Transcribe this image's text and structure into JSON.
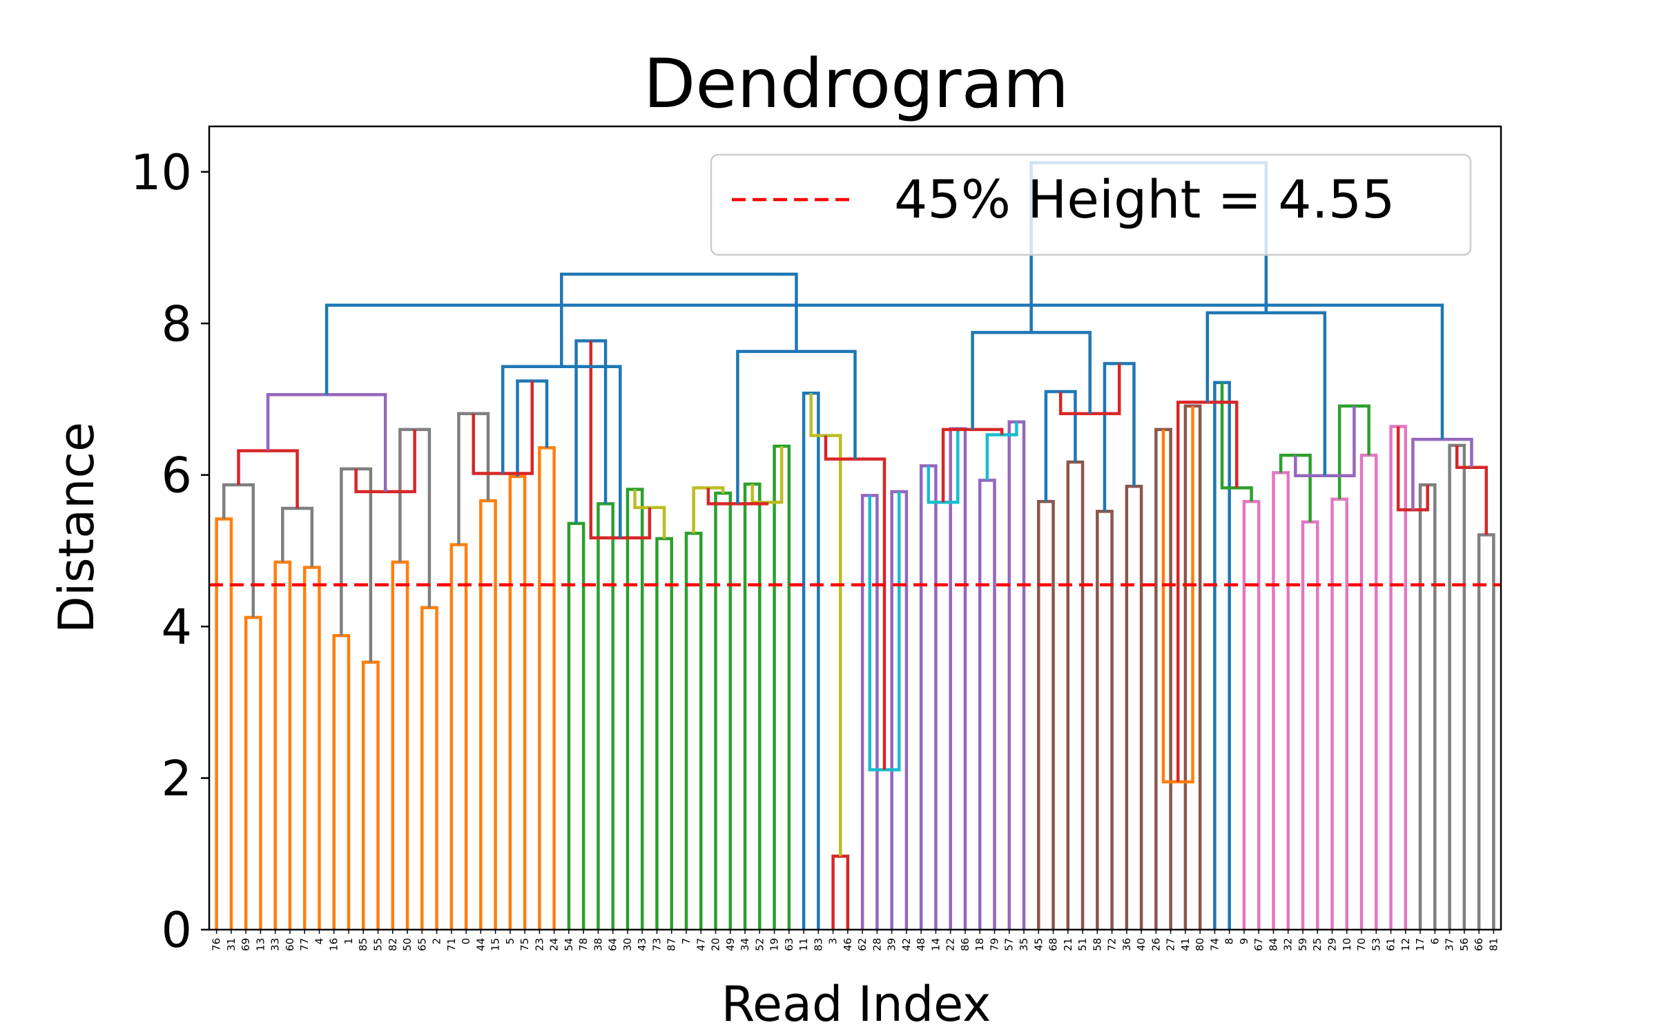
{
  "chart_data": {
    "type": "dendrogram",
    "title": "Dendrogram",
    "xlabel": "Read Index",
    "ylabel": "Distance",
    "ylim": [
      0,
      10.6
    ],
    "yticks": [
      0,
      2,
      4,
      6,
      8,
      10
    ],
    "leaves": [
      "76",
      "31",
      "69",
      "13",
      "33",
      "60",
      "77",
      "4",
      "16",
      "1",
      "85",
      "55",
      "82",
      "50",
      "65",
      "2",
      "71",
      "0",
      "44",
      "15",
      "5",
      "75",
      "23",
      "24",
      "54",
      "78",
      "38",
      "64",
      "30",
      "43",
      "73",
      "87",
      "7",
      "47",
      "20",
      "49",
      "34",
      "52",
      "19",
      "63",
      "11",
      "83",
      "3",
      "46",
      "62",
      "28",
      "39",
      "42",
      "48",
      "14",
      "22",
      "86",
      "18",
      "79",
      "57",
      "35",
      "45",
      "68",
      "21",
      "51",
      "58",
      "72",
      "36",
      "40",
      "26",
      "27",
      "41",
      "80",
      "74",
      "8",
      "9",
      "67",
      "84",
      "32",
      "59",
      "25",
      "29",
      "10",
      "70",
      "53",
      "61",
      "12",
      "17",
      "6",
      "37",
      "56",
      "66",
      "81"
    ],
    "links": [
      {
        "a": "L0",
        "b": "L1",
        "h": 5.42,
        "color": "#ff7f0e"
      },
      {
        "a": "L2",
        "b": "L3",
        "h": 4.12,
        "color": "#ff7f0e"
      },
      {
        "a": "L4",
        "b": "L5",
        "h": 4.85,
        "color": "#ff7f0e"
      },
      {
        "a": "L6",
        "b": "L7",
        "h": 4.78,
        "color": "#ff7f0e"
      },
      {
        "a": "L8",
        "b": "L9",
        "h": 3.88,
        "color": "#ff7f0e"
      },
      {
        "a": "L10",
        "b": "L11",
        "h": 3.53,
        "color": "#ff7f0e"
      },
      {
        "a": "L12",
        "b": "L13",
        "h": 4.85,
        "color": "#ff7f0e"
      },
      {
        "a": "L14",
        "b": "L15",
        "h": 4.25,
        "color": "#ff7f0e"
      },
      {
        "a": "L16",
        "b": "L17",
        "h": 5.08,
        "color": "#ff7f0e"
      },
      {
        "a": "L18",
        "b": "L19",
        "h": 5.66,
        "color": "#ff7f0e"
      },
      {
        "a": "L20",
        "b": "L21",
        "h": 5.98,
        "color": "#ff7f0e"
      },
      {
        "a": "L22",
        "b": "L23",
        "h": 6.36,
        "color": "#ff7f0e"
      },
      {
        "a": "L24",
        "b": "L25",
        "h": 5.36,
        "color": "#2ca02c"
      },
      {
        "a": "L26",
        "b": "L27",
        "h": 5.62,
        "color": "#2ca02c"
      },
      {
        "a": "L28",
        "b": "L29",
        "h": 5.81,
        "color": "#2ca02c"
      },
      {
        "a": "L30",
        "b": "L31",
        "h": 5.16,
        "color": "#2ca02c"
      },
      {
        "a": "L32",
        "b": "L33",
        "h": 5.23,
        "color": "#2ca02c"
      },
      {
        "a": "L34",
        "b": "L35",
        "h": 5.76,
        "color": "#2ca02c"
      },
      {
        "a": "L36",
        "b": "L37",
        "h": 5.88,
        "color": "#2ca02c"
      },
      {
        "a": "L38",
        "b": "L39",
        "h": 6.38,
        "color": "#2ca02c"
      },
      {
        "a": "L40",
        "b": "L41",
        "h": 7.08,
        "color": "#1f77b4"
      },
      {
        "a": "L42",
        "b": "L43",
        "h": 0.97,
        "color": "#d62728"
      },
      {
        "a": "L44",
        "b": "L45",
        "h": 5.73,
        "color": "#9467bd"
      },
      {
        "a": "L46",
        "b": "L47",
        "h": 5.78,
        "color": "#9467bd"
      },
      {
        "a": "L48",
        "b": "L49",
        "h": 6.12,
        "color": "#9467bd"
      },
      {
        "a": "L50",
        "b": "L51",
        "h": 6.61,
        "color": "#9467bd"
      },
      {
        "a": "L52",
        "b": "L53",
        "h": 5.93,
        "color": "#9467bd"
      },
      {
        "a": "L54",
        "b": "L55",
        "h": 6.7,
        "color": "#9467bd"
      },
      {
        "a": "L56",
        "b": "L57",
        "h": 5.65,
        "color": "#8c564b"
      },
      {
        "a": "L58",
        "b": "L59",
        "h": 6.17,
        "color": "#8c564b"
      },
      {
        "a": "L60",
        "b": "L61",
        "h": 5.52,
        "color": "#8c564b"
      },
      {
        "a": "L62",
        "b": "L63",
        "h": 5.85,
        "color": "#8c564b"
      },
      {
        "a": "L64",
        "b": "L65",
        "h": 6.6,
        "color": "#8c564b"
      },
      {
        "a": "L66",
        "b": "L67",
        "h": 6.91,
        "color": "#8c564b"
      },
      {
        "a": "L68",
        "b": "L69",
        "h": 7.22,
        "color": "#1f77b4"
      },
      {
        "a": "L70",
        "b": "L71",
        "h": 5.65,
        "color": "#e377c2"
      },
      {
        "a": "L72",
        "b": "L73",
        "h": 6.03,
        "color": "#e377c2"
      },
      {
        "a": "L74",
        "b": "L75",
        "h": 5.38,
        "color": "#e377c2"
      },
      {
        "a": "L76",
        "b": "L77",
        "h": 5.68,
        "color": "#e377c2"
      },
      {
        "a": "L78",
        "b": "L79",
        "h": 6.26,
        "color": "#e377c2"
      },
      {
        "a": "L80",
        "b": "L81",
        "h": 6.64,
        "color": "#e377c2"
      },
      {
        "a": "L82",
        "b": "L83",
        "h": 5.87,
        "color": "#7f7f7f"
      },
      {
        "a": "L84",
        "b": "L85",
        "h": 6.39,
        "color": "#7f7f7f"
      },
      {
        "a": "L86",
        "b": "L87",
        "h": 5.21,
        "color": "#7f7f7f"
      },
      {
        "a": "L88",
        "b": "L89",
        "h": 5.87,
        "color": "#7f7f7f"
      },
      {
        "a": "L90",
        "b": "L91",
        "h": 5.56,
        "color": "#7f7f7f"
      },
      {
        "a": "L92",
        "b": "L93",
        "h": 6.08,
        "color": "#7f7f7f"
      },
      {
        "a": "L94",
        "b": "L95",
        "h": 6.6,
        "color": "#7f7f7f"
      },
      {
        "a": "L96",
        "b": "L97",
        "h": 6.81,
        "color": "#7f7f7f"
      },
      {
        "a": "L98",
        "b": "L99",
        "h": 7.24,
        "color": "#1f77b4"
      },
      {
        "a": "L100",
        "b": "L101",
        "h": 7.77,
        "color": "#1f77b4"
      },
      {
        "a": "L102",
        "b": "L103",
        "h": 5.57,
        "color": "#bcbd22"
      },
      {
        "a": "L104",
        "b": "L105",
        "h": 5.83,
        "color": "#bcbd22"
      },
      {
        "a": "L106",
        "b": "L107",
        "h": 5.64,
        "color": "#bcbd22"
      },
      {
        "a": "L108",
        "b": "L109",
        "h": 6.52,
        "color": "#bcbd22"
      },
      {
        "a": "L110",
        "b": "L111",
        "h": 2.11,
        "color": "#17becf"
      },
      {
        "a": "L112",
        "b": "L113",
        "h": 5.64,
        "color": "#17becf"
      },
      {
        "a": "L114",
        "b": "L115",
        "h": 6.53,
        "color": "#17becf"
      },
      {
        "a": "L116",
        "b": "L117",
        "h": 7.1,
        "color": "#1f77b4"
      },
      {
        "a": "L118",
        "b": "L119",
        "h": 7.47,
        "color": "#1f77b4"
      },
      {
        "a": "L120",
        "b": "L121",
        "h": 1.95,
        "color": "#ff7f0e"
      },
      {
        "a": "L122",
        "b": "L123",
        "h": 5.83,
        "color": "#2ca02c"
      },
      {
        "a": "L124",
        "b": "L125",
        "h": 6.26,
        "color": "#2ca02c"
      },
      {
        "a": "L126",
        "b": "L127",
        "h": 6.91,
        "color": "#2ca02c"
      },
      {
        "a": "L128",
        "b": "L129",
        "h": 5.54,
        "color": "#d62728"
      },
      {
        "a": "L130",
        "b": "L131",
        "h": 6.1,
        "color": "#d62728"
      },
      {
        "a": "L132",
        "b": "L133",
        "h": 6.32,
        "color": "#d62728"
      },
      {
        "a": "L134",
        "b": "L135",
        "h": 5.78,
        "color": "#d62728"
      },
      {
        "a": "L136",
        "b": "L137",
        "h": 6.02,
        "color": "#d62728"
      },
      {
        "a": "L138",
        "b": "L139",
        "h": 5.17,
        "color": "#d62728"
      },
      {
        "a": "L140",
        "b": "L141",
        "h": 5.62,
        "color": "#d62728"
      },
      {
        "a": "L142",
        "b": "L143",
        "h": 6.21,
        "color": "#d62728"
      },
      {
        "a": "L144",
        "b": "L145",
        "h": 6.6,
        "color": "#d62728"
      },
      {
        "a": "L146",
        "b": "L147",
        "h": 6.81,
        "color": "#d62728"
      },
      {
        "a": "L148",
        "b": "L149",
        "h": 6.96,
        "color": "#d62728"
      },
      {
        "a": "L150",
        "b": "L151",
        "h": 5.99,
        "color": "#9467bd"
      },
      {
        "a": "L152",
        "b": "L153",
        "h": 6.47,
        "color": "#9467bd"
      },
      {
        "a": "L154",
        "b": "L155",
        "h": 7.06,
        "color": "#9467bd"
      },
      {
        "a": "L156",
        "b": "L157",
        "h": 7.43,
        "color": "#1f77b4"
      },
      {
        "a": "L158",
        "b": "L159",
        "h": 7.63,
        "color": "#1f77b4"
      },
      {
        "a": "L160",
        "b": "L161",
        "h": 7.88,
        "color": "#1f77b4"
      },
      {
        "a": "L162",
        "b": "L163",
        "h": 8.14,
        "color": "#1f77b4"
      },
      {
        "a": "L164",
        "b": "L165",
        "h": 8.24,
        "color": "#1f77b4"
      },
      {
        "a": "L166",
        "b": "L167",
        "h": 8.65,
        "color": "#1f77b4"
      },
      {
        "a": "L168",
        "b": "L169",
        "h": 10.12,
        "color": "#1f77b4"
      }
    ],
    "threshold": {
      "value": 4.55,
      "color": "#ff0000",
      "style": "dashed"
    },
    "legend": {
      "label": "45% Height = 4.55",
      "placement": "top-right"
    },
    "grid": false
  }
}
